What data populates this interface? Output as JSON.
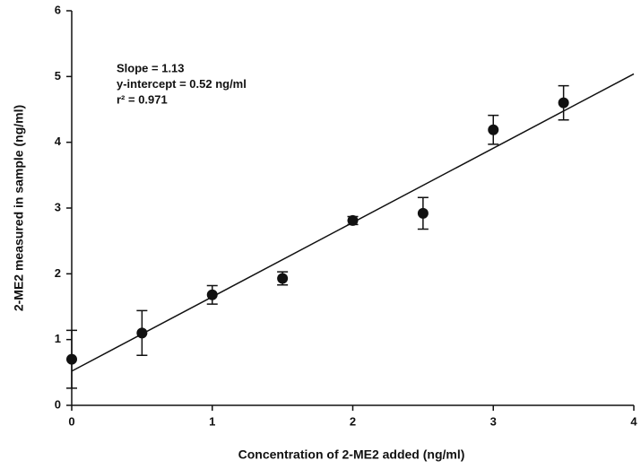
{
  "chart_data": {
    "type": "scatter",
    "x_label": "Concentration of 2-ME2 added (ng/ml)",
    "y_label": "2-ME2 measured in sample (ng/ml)",
    "annotations": [
      "Slope = 1.13",
      "y-intercept = 0.52 ng/ml",
      "r² = 0.971"
    ],
    "x": [
      0,
      0.5,
      1,
      1.5,
      2,
      2.5,
      3,
      3.5
    ],
    "values": [
      0.7,
      1.1,
      1.68,
      1.93,
      2.81,
      2.92,
      4.19,
      4.6
    ],
    "errors": [
      0.44,
      0.34,
      0.14,
      0.1,
      0.06,
      0.24,
      0.22,
      0.26
    ],
    "color": "#111111",
    "fit": {
      "x": [
        0,
        4
      ],
      "values": [
        0.52,
        5.04
      ]
    },
    "xlim": [
      0,
      4
    ],
    "xticks": [
      0,
      1,
      2,
      3,
      4
    ],
    "ylim": [
      0,
      6
    ],
    "yticks": [
      0,
      1,
      2,
      3,
      4,
      5,
      6
    ]
  }
}
